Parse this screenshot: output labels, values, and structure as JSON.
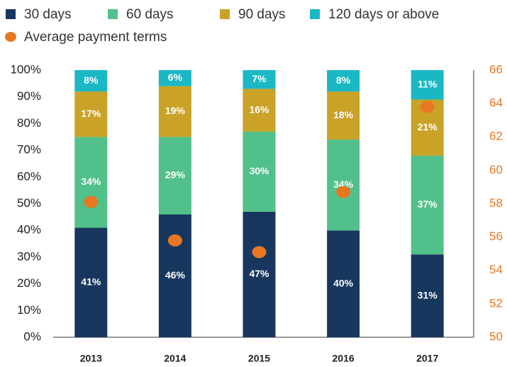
{
  "chart_data": {
    "type": "bar",
    "stacked": true,
    "categories": [
      "2013",
      "2014",
      "2015",
      "2016",
      "2017"
    ],
    "series": [
      {
        "name": "30 days",
        "color": "#17375e",
        "values": [
          41,
          46,
          47,
          40,
          31
        ],
        "value_labels": [
          "41%",
          "46%",
          "47%",
          "40%",
          "31%"
        ]
      },
      {
        "name": "60 days",
        "color": "#52c08a",
        "values": [
          34,
          29,
          30,
          34,
          37
        ],
        "value_labels": [
          "34%",
          "29%",
          "30%",
          "34%",
          "37%"
        ]
      },
      {
        "name": "90 days",
        "color": "#c9a227",
        "values": [
          17,
          19,
          16,
          18,
          21
        ],
        "value_labels": [
          "17%",
          "19%",
          "16%",
          "18%",
          "21%"
        ]
      },
      {
        "name": "120 days or above",
        "color": "#1ab8c4",
        "values": [
          8,
          6,
          7,
          8,
          11
        ],
        "value_labels": [
          "8%",
          "6%",
          "7%",
          "8%",
          "11%"
        ]
      },
      {
        "name": "Average payment terms",
        "color": "#e87722",
        "axis": "y2",
        "marker": "circle",
        "values": [
          58.1,
          55.8,
          55.1,
          58.7,
          63.8
        ]
      }
    ],
    "ylim": [
      0,
      100
    ],
    "yticks": [
      {
        "value": 0,
        "label": "0%"
      },
      {
        "value": 10,
        "label": "10%"
      },
      {
        "value": 20,
        "label": "20%"
      },
      {
        "value": 30,
        "label": "30%"
      },
      {
        "value": 40,
        "label": "40%"
      },
      {
        "value": 50,
        "label": "50%"
      },
      {
        "value": 60,
        "label": "60%"
      },
      {
        "value": 70,
        "label": "70%"
      },
      {
        "value": 80,
        "label": "80%"
      },
      {
        "value": 90,
        "label": "90%"
      },
      {
        "value": 100,
        "label": "100%"
      }
    ],
    "y2lim": [
      50,
      66
    ],
    "y2ticks": [
      50,
      52,
      54,
      56,
      58,
      60,
      62,
      64,
      66
    ],
    "grid": false
  }
}
